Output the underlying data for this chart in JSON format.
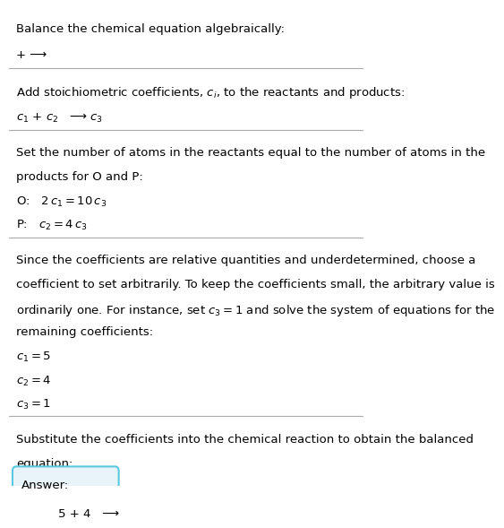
{
  "title_text": "Balance the chemical equation algebraically:",
  "section1_line1": "+ ⟶",
  "section2_header": "Add stoichiometric coefficients, $c_i$, to the reactants and products:",
  "section2_line1": "$c_1$ + $c_2$   ⟶ $c_3$",
  "section3_header": "Set the number of atoms in the reactants equal to the number of atoms in the\nproducts for O and P:",
  "section3_O": "O:   $2\\,c_1 = 10\\,c_3$",
  "section3_P": "P:   $c_2 = 4\\,c_3$",
  "section4_header": "Since the coefficients are relative quantities and underdetermined, choose a\ncoefficient to set arbitrarily. To keep the coefficients small, the arbitrary value is\nordinarily one. For instance, set $c_3 = 1$ and solve the system of equations for the\nremaining coefficients:",
  "section4_c1": "$c_1 = 5$",
  "section4_c2": "$c_2 = 4$",
  "section4_c3": "$c_3 = 1$",
  "section5_header": "Substitute the coefficients into the chemical reaction to obtain the balanced\nequation:",
  "answer_label": "Answer:",
  "answer_eq": "5 + 4   ⟶",
  "bg_color": "#ffffff",
  "text_color": "#000000",
  "divider_color": "#aaaaaa",
  "answer_box_bg": "#e8f4f8",
  "answer_box_border": "#5bc8e0"
}
